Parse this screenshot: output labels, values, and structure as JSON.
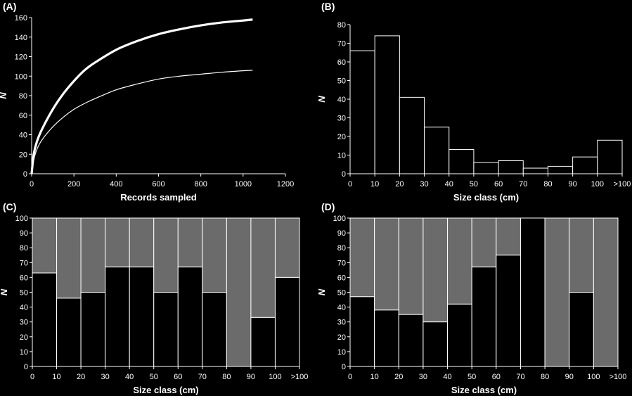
{
  "chart_data": [
    {
      "panel": "(A)",
      "type": "line",
      "xlabel": "Records sampled",
      "ylabel": "N",
      "xlim": [
        0,
        1200
      ],
      "ylim": [
        0,
        160
      ],
      "xticks": [
        0,
        200,
        400,
        600,
        800,
        1000,
        1200
      ],
      "yticks": [
        0,
        20,
        40,
        60,
        80,
        100,
        120,
        140,
        160
      ],
      "grid": false,
      "series": [
        {
          "style": "thick",
          "color": "#ffffff",
          "x": [
            0,
            10,
            25,
            50,
            100,
            150,
            200,
            250,
            300,
            400,
            500,
            600,
            700,
            800,
            900,
            1000,
            1045
          ],
          "y": [
            0,
            20,
            33,
            46,
            66,
            82,
            95,
            106,
            114,
            127,
            136,
            143,
            148,
            152,
            155,
            157,
            158
          ]
        },
        {
          "style": "thin",
          "color": "#ffffff",
          "x": [
            0,
            10,
            25,
            50,
            100,
            150,
            200,
            250,
            300,
            400,
            500,
            600,
            700,
            800,
            900,
            1000,
            1045
          ],
          "y": [
            0,
            14,
            25,
            35,
            48,
            58,
            66,
            72,
            77,
            86,
            92,
            97,
            100,
            102,
            104,
            105.5,
            106
          ]
        }
      ]
    },
    {
      "panel": "(B)",
      "type": "bar",
      "xlabel": "Size class (cm)",
      "ylabel": "N",
      "ylim": [
        0,
        80
      ],
      "yticks": [
        0,
        10,
        20,
        30,
        40,
        50,
        60,
        70,
        80
      ],
      "xticks": [
        "0",
        "10",
        "20",
        "30",
        "40",
        "50",
        "60",
        "70",
        "80",
        "90",
        "100",
        ">100"
      ],
      "values": [
        66,
        74,
        41,
        25,
        13,
        6,
        7,
        3,
        4,
        9,
        18
      ],
      "bar_fill": "#000000",
      "bar_stroke": "#ffffff"
    },
    {
      "panel": "(C)",
      "type": "bar",
      "stacked": true,
      "xlabel": "Size class (cm)",
      "ylabel": "N",
      "ylim": [
        0,
        100
      ],
      "yticks": [
        0,
        10,
        20,
        30,
        40,
        50,
        60,
        70,
        80,
        90,
        100
      ],
      "xticks": [
        "0",
        "10",
        "20",
        "30",
        "40",
        "50",
        "60",
        "70",
        "80",
        "90",
        "100",
        ">100"
      ],
      "values": [
        63,
        46,
        50,
        67,
        67,
        50,
        67,
        50,
        0,
        33,
        60
      ],
      "colors": {
        "lower": "#000000",
        "upper": "#6b6b6b",
        "stroke": "#ffffff"
      }
    },
    {
      "panel": "(D)",
      "type": "bar",
      "stacked": true,
      "xlabel": "Size class (cm)",
      "ylabel": "N",
      "ylim": [
        0,
        100
      ],
      "yticks": [
        0,
        10,
        20,
        30,
        40,
        50,
        60,
        70,
        80,
        90,
        100
      ],
      "xticks": [
        "0",
        "10",
        "20",
        "30",
        "40",
        "50",
        "60",
        "70",
        "80",
        "90",
        "100",
        ">100"
      ],
      "values": [
        47,
        38,
        35,
        30,
        42,
        67,
        75,
        100,
        0,
        50,
        0
      ],
      "colors": {
        "lower": "#000000",
        "upper": "#6b6b6b",
        "stroke": "#ffffff"
      }
    }
  ]
}
